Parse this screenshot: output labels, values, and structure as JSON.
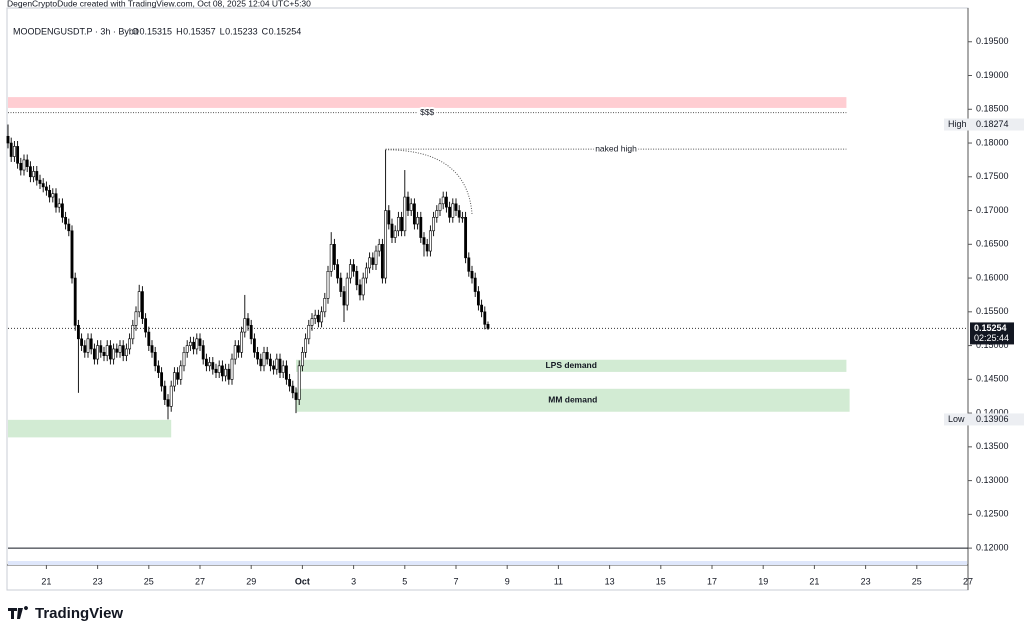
{
  "header": {
    "credit": "DegenCryptoDude created with TradingView.com, Oct 08, 2025 12:04 UTC+5:30",
    "symbol": "MOODENGUSDT.P · 3h · Bybit",
    "ohlc_letters": [
      "O",
      "H",
      "L",
      "C"
    ]
  },
  "logo": "TradingView",
  "chart_data": {
    "type": "candlestick",
    "up_color": "#ffffff",
    "down_color": "#000000",
    "outline_color": "#000000",
    "open": [
      0.181,
      0.18,
      0.178,
      0.1795,
      0.177,
      0.176,
      0.1775,
      0.1765,
      0.175,
      0.1758,
      0.1745,
      0.174,
      0.1735,
      0.173,
      0.172,
      0.1725,
      0.1705,
      0.171,
      0.169,
      0.168,
      0.167,
      0.16,
      0.153,
      0.151,
      0.15,
      0.149,
      0.151,
      0.1495,
      0.148,
      0.15,
      0.149,
      0.1485,
      0.15,
      0.148,
      0.1495,
      0.149,
      0.15,
      0.1485,
      0.1495,
      0.151,
      0.153,
      0.155,
      0.158,
      0.154,
      0.152,
      0.15,
      0.149,
      0.147,
      0.146,
      0.144,
      0.142,
      0.141,
      0.144,
      0.146,
      0.145,
      0.147,
      0.149,
      0.15,
      0.1505,
      0.1495,
      0.151,
      0.15,
      0.148,
      0.147,
      0.1475,
      0.1465,
      0.146,
      0.147,
      0.1455,
      0.1465,
      0.145,
      0.148,
      0.15,
      0.149,
      0.152,
      0.154,
      0.153,
      0.151,
      0.149,
      0.148,
      0.147,
      0.149,
      0.148,
      0.147,
      0.1465,
      0.148,
      0.146,
      0.147,
      0.145,
      0.144,
      0.143,
      0.142,
      0.147,
      0.149,
      0.151,
      0.153,
      0.154,
      0.1545,
      0.1535,
      0.155,
      0.157,
      0.161,
      0.165,
      0.162,
      0.16,
      0.158,
      0.156,
      0.16,
      0.162,
      0.161,
      0.159,
      0.1575,
      0.16,
      0.1615,
      0.163,
      0.162,
      0.164,
      0.165,
      0.16,
      0.17,
      0.168,
      0.166,
      0.167,
      0.169,
      0.167,
      0.172,
      0.17,
      0.171,
      0.168,
      0.169,
      0.166,
      0.165,
      0.164,
      0.167,
      0.169,
      0.17,
      0.171,
      0.172,
      0.1705,
      0.169,
      0.171,
      0.17,
      0.169,
      0.169,
      0.163,
      0.161,
      0.16,
      0.158,
      0.156,
      0.155,
      0.15315
    ],
    "high": [
      0.18274,
      0.1808,
      0.1803,
      0.1803,
      0.1778,
      0.1783,
      0.1783,
      0.1773,
      0.1766,
      0.1766,
      0.1753,
      0.1748,
      0.1743,
      0.1738,
      0.1733,
      0.1733,
      0.1718,
      0.1718,
      0.1698,
      0.1688,
      0.1678,
      0.1608,
      0.1538,
      0.1518,
      0.1508,
      0.1518,
      0.1518,
      0.1503,
      0.1508,
      0.1508,
      0.1498,
      0.1508,
      0.1508,
      0.1503,
      0.1503,
      0.1508,
      0.1508,
      0.1503,
      0.1518,
      0.1538,
      0.1558,
      0.159,
      0.1588,
      0.1548,
      0.1528,
      0.1508,
      0.1498,
      0.1478,
      0.1468,
      0.1448,
      0.1428,
      0.1448,
      0.1468,
      0.1468,
      0.1478,
      0.1498,
      0.1508,
      0.1513,
      0.1513,
      0.1518,
      0.1518,
      0.1508,
      0.1488,
      0.1483,
      0.1483,
      0.1473,
      0.1478,
      0.1478,
      0.1473,
      0.1473,
      0.1488,
      0.1508,
      0.1508,
      0.1528,
      0.1575,
      0.1548,
      0.1538,
      0.1518,
      0.1498,
      0.1488,
      0.1498,
      0.1498,
      0.1488,
      0.1478,
      0.1488,
      0.1488,
      0.1478,
      0.1478,
      0.1458,
      0.1448,
      0.1438,
      0.1478,
      0.1498,
      0.1518,
      0.1538,
      0.1548,
      0.1553,
      0.1553,
      0.1558,
      0.1578,
      0.1618,
      0.1668,
      0.1658,
      0.1628,
      0.1608,
      0.1588,
      0.1608,
      0.1628,
      0.1628,
      0.1618,
      0.1598,
      0.1608,
      0.1623,
      0.1638,
      0.1638,
      0.1648,
      0.1658,
      0.1658,
      0.179,
      0.1708,
      0.1688,
      0.1678,
      0.1698,
      0.1698,
      0.176,
      0.1728,
      0.1718,
      0.1718,
      0.1698,
      0.1698,
      0.1668,
      0.1658,
      0.1678,
      0.1698,
      0.1708,
      0.1718,
      0.1728,
      0.1728,
      0.1713,
      0.1718,
      0.1718,
      0.1708,
      0.1698,
      0.1698,
      0.1638,
      0.1618,
      0.1608,
      0.1588,
      0.1568,
      0.1558,
      0.15357
    ],
    "low": [
      0.1792,
      0.1772,
      0.1772,
      0.1762,
      0.1752,
      0.1752,
      0.1757,
      0.1742,
      0.1742,
      0.1737,
      0.1732,
      0.1727,
      0.1722,
      0.1712,
      0.1712,
      0.1697,
      0.1697,
      0.1682,
      0.1672,
      0.1662,
      0.1592,
      0.1522,
      0.143,
      0.1492,
      0.1482,
      0.1482,
      0.1487,
      0.1472,
      0.1472,
      0.1482,
      0.1477,
      0.1477,
      0.1472,
      0.1472,
      0.1482,
      0.1482,
      0.1477,
      0.1477,
      0.1487,
      0.1502,
      0.1522,
      0.1542,
      0.1532,
      0.1512,
      0.1492,
      0.1482,
      0.1462,
      0.1452,
      0.1432,
      0.1412,
      0.13906,
      0.1402,
      0.1432,
      0.1442,
      0.1442,
      0.1462,
      0.1482,
      0.1492,
      0.1487,
      0.1487,
      0.1492,
      0.1472,
      0.1462,
      0.1462,
      0.1457,
      0.1452,
      0.1452,
      0.1447,
      0.1447,
      0.1442,
      0.1442,
      0.1472,
      0.1482,
      0.1482,
      0.1512,
      0.1522,
      0.1502,
      0.1482,
      0.1472,
      0.1462,
      0.1462,
      0.1472,
      0.1462,
      0.1457,
      0.1457,
      0.1452,
      0.1452,
      0.1442,
      0.1432,
      0.1422,
      0.14,
      0.1412,
      0.1462,
      0.1482,
      0.1502,
      0.1522,
      0.1532,
      0.1527,
      0.1527,
      0.1542,
      0.1562,
      0.1602,
      0.1612,
      0.1592,
      0.1572,
      0.1535,
      0.1552,
      0.1592,
      0.1602,
      0.1582,
      0.1567,
      0.1567,
      0.1592,
      0.1607,
      0.1612,
      0.1612,
      0.1632,
      0.1592,
      0.1592,
      0.1672,
      0.1652,
      0.1652,
      0.1662,
      0.1662,
      0.1662,
      0.1692,
      0.1692,
      0.1672,
      0.1672,
      0.1652,
      0.1632,
      0.1632,
      0.1632,
      0.1662,
      0.1682,
      0.1692,
      0.1702,
      0.1697,
      0.1682,
      0.1682,
      0.1692,
      0.1682,
      0.1682,
      0.1622,
      0.1602,
      0.1592,
      0.1572,
      0.1552,
      0.1542,
      0.1524,
      0.15233
    ],
    "close": [
      0.18,
      0.178,
      0.1795,
      0.177,
      0.176,
      0.1775,
      0.1765,
      0.175,
      0.1758,
      0.1745,
      0.174,
      0.1735,
      0.173,
      0.172,
      0.1725,
      0.1705,
      0.171,
      0.169,
      0.168,
      0.167,
      0.16,
      0.153,
      0.151,
      0.15,
      0.149,
      0.151,
      0.1495,
      0.148,
      0.15,
      0.149,
      0.1485,
      0.15,
      0.148,
      0.1495,
      0.149,
      0.15,
      0.1485,
      0.1495,
      0.151,
      0.153,
      0.155,
      0.158,
      0.154,
      0.152,
      0.15,
      0.149,
      0.147,
      0.146,
      0.144,
      0.142,
      0.141,
      0.144,
      0.146,
      0.145,
      0.147,
      0.149,
      0.15,
      0.1505,
      0.1495,
      0.151,
      0.15,
      0.148,
      0.147,
      0.1475,
      0.1465,
      0.146,
      0.147,
      0.1455,
      0.1465,
      0.145,
      0.148,
      0.15,
      0.149,
      0.152,
      0.154,
      0.153,
      0.151,
      0.149,
      0.148,
      0.147,
      0.149,
      0.148,
      0.147,
      0.1465,
      0.148,
      0.146,
      0.147,
      0.145,
      0.144,
      0.143,
      0.142,
      0.147,
      0.149,
      0.151,
      0.153,
      0.154,
      0.1545,
      0.1535,
      0.155,
      0.157,
      0.161,
      0.165,
      0.162,
      0.16,
      0.158,
      0.156,
      0.16,
      0.162,
      0.161,
      0.159,
      0.1575,
      0.16,
      0.1615,
      0.163,
      0.162,
      0.164,
      0.165,
      0.16,
      0.17,
      0.168,
      0.166,
      0.167,
      0.169,
      0.167,
      0.172,
      0.17,
      0.171,
      0.168,
      0.169,
      0.166,
      0.165,
      0.164,
      0.167,
      0.169,
      0.17,
      0.171,
      0.172,
      0.1705,
      0.169,
      0.171,
      0.17,
      0.169,
      0.169,
      0.163,
      0.161,
      0.16,
      0.158,
      0.156,
      0.155,
      0.15315,
      0.15254
    ],
    "xlim": [
      0,
      300
    ],
    "xticks": [
      {
        "value": 12,
        "label": "21"
      },
      {
        "value": 28,
        "label": "23"
      },
      {
        "value": 44,
        "label": "25"
      },
      {
        "value": 60,
        "label": "27"
      },
      {
        "value": 76,
        "label": "29"
      },
      {
        "value": 92,
        "label": "Oct"
      },
      {
        "value": 108,
        "label": "3"
      },
      {
        "value": 124,
        "label": "5"
      },
      {
        "value": 140,
        "label": "7"
      },
      {
        "value": 156,
        "label": "9"
      },
      {
        "value": 172,
        "label": "11"
      },
      {
        "value": 188,
        "label": "13"
      },
      {
        "value": 204,
        "label": "15"
      },
      {
        "value": 220,
        "label": "17"
      },
      {
        "value": 236,
        "label": "19"
      },
      {
        "value": 252,
        "label": "21"
      },
      {
        "value": 268,
        "label": "23"
      },
      {
        "value": 284,
        "label": "25"
      },
      {
        "value": 300,
        "label": "27"
      }
    ],
    "ylim": [
      0.1175,
      0.2
    ],
    "yticks": [
      {
        "value": 0.12,
        "label": "0.12000"
      },
      {
        "value": 0.125,
        "label": "0.12500"
      },
      {
        "value": 0.13,
        "label": "0.13000"
      },
      {
        "value": 0.135,
        "label": "0.13500"
      },
      {
        "value": 0.14,
        "label": "0.14000"
      },
      {
        "value": 0.145,
        "label": "0.14500"
      },
      {
        "value": 0.15,
        "label": "0.15000"
      },
      {
        "value": 0.155,
        "label": "0.15500"
      },
      {
        "value": 0.16,
        "label": "0.16000"
      },
      {
        "value": 0.165,
        "label": "0.16500"
      },
      {
        "value": 0.17,
        "label": "0.17000"
      },
      {
        "value": 0.175,
        "label": "0.17500"
      },
      {
        "value": 0.18,
        "label": "0.18000"
      },
      {
        "value": 0.185,
        "label": "0.18500"
      },
      {
        "value": 0.19,
        "label": "0.19000"
      },
      {
        "value": 0.195,
        "label": "0.19500"
      }
    ],
    "high_marker": {
      "label": "High",
      "value": 0.18274
    },
    "low_marker": {
      "label": "Low",
      "value": 0.13906
    },
    "countdown": "02:25:44",
    "zones": [
      {
        "top": 0.1868,
        "bottom": 0.1852,
        "start": 0,
        "end": 262,
        "color": "#ffcdd2"
      },
      {
        "label": "LPS demand",
        "top": 0.1479,
        "bottom": 0.1461,
        "start": 90,
        "end": 262,
        "color": "#d2ebd3"
      },
      {
        "label": "MM demand",
        "top": 0.1436,
        "bottom": 0.1402,
        "start": 90,
        "end": 263,
        "color": "#d2ebd3"
      },
      {
        "top": 0.139,
        "bottom": 0.1364,
        "start": 0,
        "end": 51,
        "color": "#d2ebd3"
      }
    ],
    "lines": [
      {
        "label": "$$$",
        "value": 0.1845,
        "start": 0,
        "end": 262,
        "style": "dotted"
      },
      {
        "label": "naked high",
        "value": 0.1791,
        "start": 118,
        "end": 262,
        "style": "dotted"
      },
      {
        "value": 0.12,
        "start": 0,
        "end": 300,
        "style": "solid"
      }
    ],
    "arc": {
      "x": [
        118,
        145
      ],
      "y": [
        0.179,
        0.1695
      ]
    }
  }
}
